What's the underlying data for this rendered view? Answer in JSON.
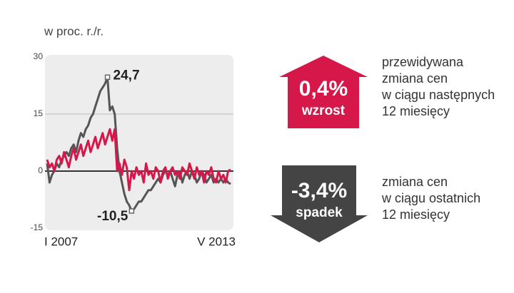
{
  "chart_data": {
    "type": "line",
    "y_label": "w proc. r./r.",
    "categories": [
      "I 2007",
      null,
      null,
      null,
      null,
      null,
      null,
      null,
      null,
      null,
      null,
      null,
      null,
      null,
      null,
      null,
      null,
      null,
      null,
      null,
      null,
      null,
      null,
      null,
      null,
      null,
      null,
      null,
      null,
      null,
      null,
      null,
      null,
      null,
      null,
      null,
      null,
      null,
      null,
      null,
      null,
      null,
      null,
      null,
      null,
      null,
      null,
      null,
      null,
      null,
      null,
      null,
      null,
      null,
      null,
      null,
      null,
      null,
      null,
      null,
      null,
      null,
      null,
      null,
      null,
      null,
      null,
      null,
      null,
      null,
      null,
      null,
      null,
      null,
      null,
      null,
      "V 2013"
    ],
    "series": [
      {
        "color": "#555555",
        "values": [
          2,
          -3,
          -1,
          0,
          2,
          1,
          3,
          4,
          5,
          4,
          6,
          7,
          5,
          8,
          10,
          9,
          11,
          12,
          14,
          15,
          17,
          19,
          21,
          22,
          23,
          24.7,
          16,
          17,
          15,
          6,
          0,
          -3,
          -6,
          -8,
          -9,
          -10.5,
          -10,
          -9,
          -8,
          -8,
          -7,
          -6,
          -5,
          -5,
          -4,
          -3,
          -2,
          -3,
          -1,
          0,
          -1,
          0,
          -2,
          -4,
          -1,
          0,
          -3,
          -1,
          0,
          -2,
          0,
          -1,
          -3,
          -2,
          0,
          -1,
          -3,
          -2,
          -1,
          -3,
          -2,
          -3,
          -2,
          -3,
          -2,
          -3,
          -3.4
        ],
        "value_labels": [
          null,
          null,
          null,
          null,
          null,
          null,
          null,
          null,
          null,
          null,
          null,
          null,
          null,
          null,
          null,
          null,
          null,
          null,
          null,
          null,
          null,
          null,
          null,
          null,
          null,
          "24,7",
          null,
          null,
          null,
          null,
          null,
          null,
          null,
          null,
          null,
          "-10,5",
          null,
          null,
          null,
          null,
          null,
          null,
          null,
          null,
          null,
          null,
          null,
          null,
          null,
          null,
          null,
          null,
          null,
          null,
          null,
          null,
          null,
          null,
          null,
          null,
          null,
          null,
          null,
          null,
          null,
          null,
          null,
          null,
          null,
          null,
          null,
          null,
          null,
          null,
          null,
          null,
          null
        ]
      },
      {
        "color": "#d6174a",
        "values": [
          3,
          1,
          2,
          0,
          3,
          4,
          2,
          5,
          3,
          1,
          4,
          6,
          3,
          5,
          7,
          4,
          6,
          8,
          5,
          7,
          9,
          6,
          8,
          10,
          7,
          9,
          11,
          8,
          11,
          0,
          2,
          -1,
          3,
          1,
          -5,
          0,
          -2,
          1,
          -1,
          0,
          -3,
          2,
          -1,
          0,
          -2,
          1,
          0,
          -3,
          0,
          1,
          -2,
          0,
          1,
          -1,
          0,
          -2,
          1,
          0,
          -1,
          2,
          0,
          -2,
          1,
          -1,
          0,
          -3,
          0,
          -1,
          1,
          -2,
          -3,
          0,
          -2,
          -1,
          -3,
          0,
          0.4
        ]
      }
    ],
    "ylim": [
      -15,
      30
    ],
    "yticks": [
      30,
      15,
      0,
      -15
    ],
    "grid": true
  },
  "infographic": {
    "panels": [
      {
        "figure": "0,4%",
        "label": "wzrost",
        "direction": "up",
        "color": "#d6174a",
        "description": [
          "przewidywana",
          "zmiana cen",
          "w ciągu następnych",
          "12 miesięcy"
        ]
      },
      {
        "figure": "-3,4%",
        "label": "spadek",
        "direction": "down",
        "color": "#444444",
        "description": [
          "zmiana cen",
          "w ciągu ostatnich",
          "12 miesięcy"
        ]
      }
    ]
  }
}
